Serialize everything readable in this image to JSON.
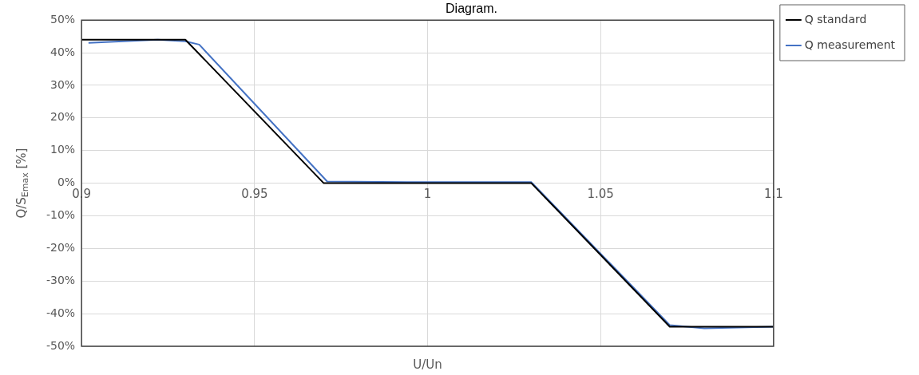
{
  "chart_data": {
    "type": "line",
    "title": "Diagram.",
    "xlabel": "U/Un",
    "ylabel": "Q/S$_{Emax}$ [%]",
    "xlim": [
      0.9,
      1.1
    ],
    "xticks": [
      0.9,
      0.95,
      1,
      1.05,
      1.1
    ],
    "ylim": [
      -50,
      50
    ],
    "yticks": [
      {
        "value": -50,
        "label": "-50%"
      },
      {
        "value": -40,
        "label": "-40%"
      },
      {
        "value": -30,
        "label": "-30%"
      },
      {
        "value": -20,
        "label": "-20%"
      },
      {
        "value": -10,
        "label": "-10%"
      },
      {
        "value": 0,
        "label": "0%"
      },
      {
        "value": 10,
        "label": "10%"
      },
      {
        "value": 20,
        "label": "20%"
      },
      {
        "value": 30,
        "label": "30%"
      },
      {
        "value": 40,
        "label": "40%"
      },
      {
        "value": 50,
        "label": "50%"
      }
    ],
    "grid": true,
    "legend": "top right",
    "marker": "none",
    "line_style": "solid",
    "series": [
      {
        "name": "Q standard",
        "color": "#000000",
        "x": [
          0.9,
          0.93,
          0.97,
          1.03,
          1.07,
          1.1
        ],
        "values": [
          44,
          44,
          0,
          0,
          -44,
          -44
        ]
      },
      {
        "name": "Q measurement",
        "color": "#4472c4",
        "x": [
          0.902,
          0.922,
          0.93,
          0.934,
          0.971,
          1.0,
          1.03,
          1.07,
          1.08,
          1.1
        ],
        "values": [
          43,
          44,
          43.5,
          42.5,
          0.5,
          0.3,
          0.3,
          -43.5,
          -44.5,
          -44
        ]
      }
    ]
  }
}
